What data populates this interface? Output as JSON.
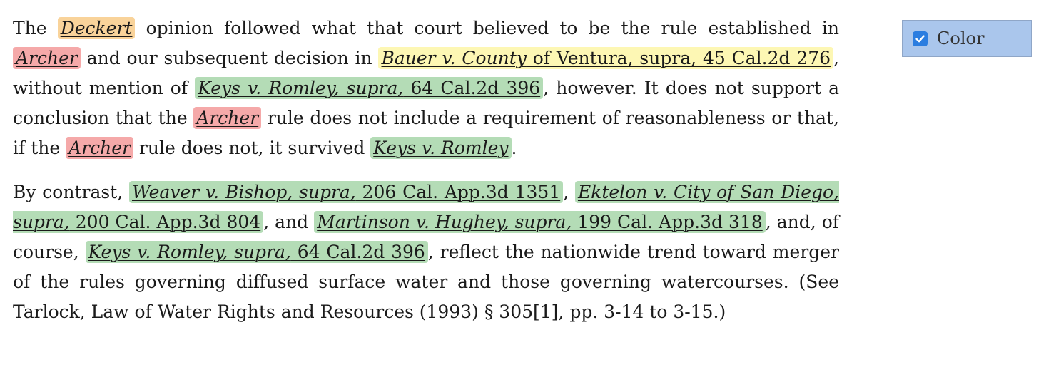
{
  "paragraph1": {
    "t0": "The ",
    "c0a": "Deckert",
    "t1": " opinion followed what that court believed to be the rule established in ",
    "c1a": "Archer",
    "t2": " and our subsequent decision in ",
    "c2a": "Bauer v. County",
    "c2b": " of Ventura, supra, 45 Cal.2d 276",
    "t3": ", without mention of ",
    "c3a": "Keys v. Romley, supra,",
    "c3b": " 64 Cal.2d 396",
    "t4": ", however. It does not support a conclusion that the ",
    "c4a": "Archer",
    "t5": " rule does not include a requirement of reasonableness or that, if the ",
    "c5a": "Archer",
    "t6": " rule does not, it survived ",
    "c6a": "Keys v. Romley",
    "t7": "."
  },
  "paragraph2": {
    "t0": "By contrast, ",
    "c0a": "Weaver v. Bishop, supra,",
    "c0b": " 206 Cal. App.3d 1351",
    "t1": ", ",
    "c1a": "Ektelon v. City of San Diego, supra,",
    "c1b": " 200 Cal. App.3d 804",
    "t2": ", and ",
    "c2a": "Martinson v. Hughey, supra,",
    "c2b": " 199 Cal. App.3d 318",
    "t3": ", and, of course, ",
    "c3a": "Keys v. Romley, supra,",
    "c3b": " 64 Cal.2d 396",
    "t4": ", reflect the nationwide trend toward merger of the rules governing diffused surface water and those governing watercourses. (See Tarlock, Law of Water Rights and Resources (1993) § 305[1], pp. 3-14 to 3-15.)"
  },
  "color_toggle": {
    "label": "Color",
    "checked": true,
    "icon": "checkmark-icon"
  },
  "colors": {
    "case_name_primary": "#f9d39a",
    "case_name_disfavored": "#f5a9a9",
    "case_name_caution": "#fdf7b4",
    "case_name_positive": "#b4dcb6",
    "toggle_background": "#aac6ec",
    "checkbox_blue": "#2b7de0"
  }
}
